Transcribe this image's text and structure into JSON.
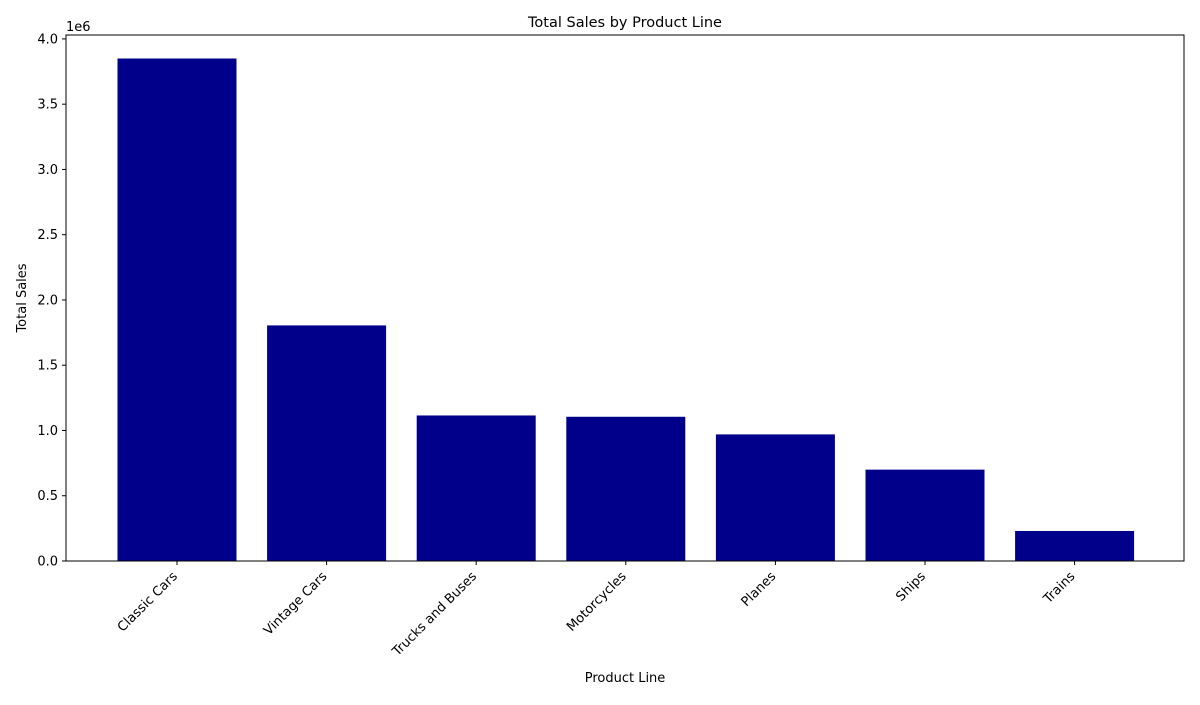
{
  "chart_data": {
    "type": "bar",
    "title": "Total Sales by Product Line",
    "xlabel": "Product Line",
    "ylabel": "Total Sales",
    "y_offset_label": "1e6",
    "categories": [
      "Classic Cars",
      "Vintage Cars",
      "Trucks and Buses",
      "Motorcycles",
      "Planes",
      "Ships",
      "Trains"
    ],
    "values": [
      3850000,
      1805000,
      1115000,
      1105000,
      970000,
      700000,
      230000
    ],
    "ylim": [
      0,
      4030000
    ],
    "yticks": [
      0,
      500000,
      1000000,
      1500000,
      2000000,
      2500000,
      3000000,
      3500000,
      4000000
    ],
    "ytick_labels": [
      "0.0",
      "0.5",
      "1.0",
      "1.5",
      "2.0",
      "2.5",
      "3.0",
      "3.5",
      "4.0"
    ],
    "grid": false,
    "legend": "none",
    "bar_color": "#00008b"
  }
}
